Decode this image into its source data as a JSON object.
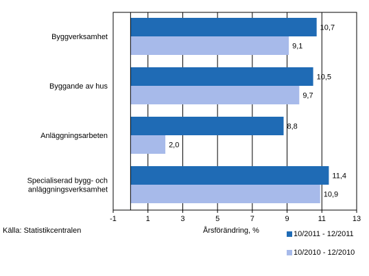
{
  "chart_data": {
    "type": "bar",
    "orientation": "horizontal",
    "categories": [
      [
        "Byggverksamhet"
      ],
      [
        "Byggande av hus"
      ],
      [
        "Anläggningsarbeten"
      ],
      [
        "Specialiserad bygg- och",
        "anläggningsverksamhet"
      ]
    ],
    "series": [
      {
        "name": "10/2011 - 12/2011",
        "color": "#1f6bb5",
        "values": [
          10.7,
          10.5,
          8.8,
          11.4
        ],
        "labels": [
          "10,7",
          "10,5",
          "8,8",
          "11,4"
        ]
      },
      {
        "name": "10/2010 - 12/2010",
        "color": "#a7baea",
        "values": [
          9.1,
          9.7,
          2.0,
          10.9
        ],
        "labels": [
          "9,1",
          "9,7",
          "2,0",
          "10,9"
        ]
      }
    ],
    "xlabel": "Årsförändring, %",
    "xlim": [
      -1,
      13
    ],
    "xticks": [
      -1,
      1,
      3,
      5,
      7,
      9,
      11,
      13
    ],
    "grid": "vertical",
    "legend": "bottom-right"
  },
  "source": "Källa: Statistikcentralen"
}
